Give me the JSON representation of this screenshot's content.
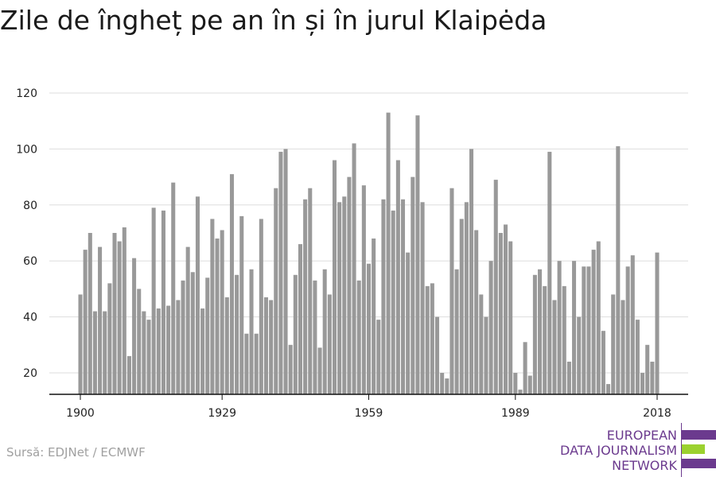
{
  "title": "Zile de îngheț pe an în și în jurul Klaipėda",
  "source": "Sursă: EDJNet / ECMWF",
  "logo": {
    "lines": [
      "EUROPEAN",
      "DATA JOURNALISM",
      "NETWORK"
    ],
    "colors": {
      "text": "#6b3a8e",
      "purple": "#6b3a8e",
      "green": "#9bd12f"
    }
  },
  "colors": {
    "bar": "#999999",
    "grid": "#dddddd",
    "axis": "#111111"
  },
  "chart_data": {
    "type": "bar",
    "title": "Zile de îngheț pe an în și în jurul Klaipėda",
    "xlabel": "",
    "ylabel": "",
    "x_start": 1900,
    "x_end": 2018,
    "x_ticks": [
      1900,
      1929,
      1959,
      1989,
      2018
    ],
    "y_ticks": [
      20,
      40,
      60,
      80,
      100,
      120
    ],
    "ylim": [
      12,
      124
    ],
    "grid": true,
    "values": [
      48,
      64,
      70,
      42,
      65,
      42,
      52,
      70,
      67,
      72,
      26,
      61,
      50,
      42,
      39,
      79,
      43,
      78,
      44,
      88,
      46,
      53,
      65,
      56,
      83,
      43,
      54,
      75,
      68,
      71,
      47,
      91,
      55,
      76,
      34,
      57,
      34,
      75,
      47,
      46,
      86,
      99,
      100,
      30,
      55,
      66,
      82,
      86,
      53,
      29,
      57,
      48,
      96,
      81,
      83,
      90,
      102,
      53,
      87,
      59,
      68,
      39,
      82,
      113,
      78,
      96,
      82,
      63,
      90,
      112,
      81,
      51,
      52,
      40,
      20,
      18,
      86,
      57,
      75,
      81,
      100,
      71,
      48,
      40,
      60,
      89,
      70,
      73,
      67,
      20,
      14,
      31,
      19,
      55,
      57,
      51,
      99,
      46,
      60,
      51,
      24,
      60,
      40,
      58,
      58,
      64,
      67,
      35,
      16,
      48,
      101,
      46,
      58,
      62,
      39,
      20,
      30,
      24,
      63
    ]
  }
}
